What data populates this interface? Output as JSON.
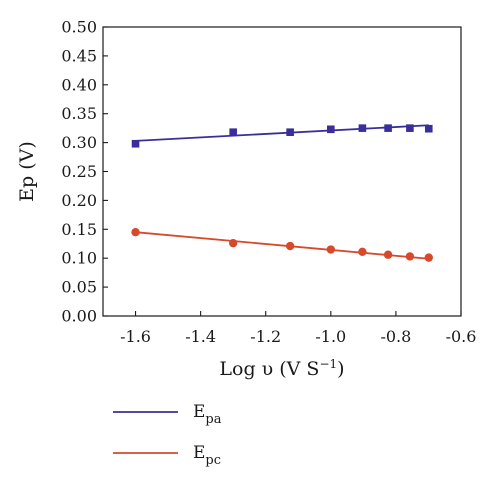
{
  "chart_data": {
    "type": "scatter",
    "xlabel": "Log υ (V S",
    "xlabel_sup": "−1",
    "xlabel_close": ")",
    "ylabel": "Ep (V)",
    "xlim": [
      -1.7,
      -0.6
    ],
    "ylim": [
      0.0,
      0.5
    ],
    "x_ticks": [
      -1.6,
      -1.4,
      -1.2,
      -1.0,
      -0.8,
      -0.6
    ],
    "x_tick_labels": [
      "-1.6",
      "-1.4",
      "-1.2",
      "-1.0",
      "-0.8",
      "-0.6"
    ],
    "y_ticks": [
      0.0,
      0.05,
      0.1,
      0.15,
      0.2,
      0.25,
      0.3,
      0.35,
      0.4,
      0.45,
      0.5
    ],
    "y_tick_labels": [
      "0.00",
      "0.05",
      "0.10",
      "0.15",
      "0.20",
      "0.25",
      "0.30",
      "0.35",
      "0.40",
      "0.45",
      "0.50"
    ],
    "grid": false,
    "legend_position": "below",
    "series": [
      {
        "name": "E",
        "name_sub": "pa",
        "color": "#3a2f9a",
        "marker": "square",
        "x": [
          -1.6,
          -1.3,
          -1.125,
          -1.0,
          -0.903,
          -0.824,
          -0.757,
          -0.699
        ],
        "y": [
          0.298,
          0.318,
          0.318,
          0.323,
          0.325,
          0.325,
          0.325,
          0.324
        ],
        "fit": {
          "x": [
            -1.6,
            -0.699
          ],
          "y": [
            0.303,
            0.33
          ]
        }
      },
      {
        "name": "E",
        "name_sub": "pc",
        "color": "#d6492b",
        "marker": "circle",
        "x": [
          -1.6,
          -1.3,
          -1.125,
          -1.0,
          -0.903,
          -0.824,
          -0.757,
          -0.699
        ],
        "y": [
          0.145,
          0.126,
          0.121,
          0.115,
          0.111,
          0.106,
          0.103,
          0.101
        ],
        "fit": {
          "x": [
            -1.6,
            -0.699
          ],
          "y": [
            0.145,
            0.099
          ]
        }
      }
    ]
  }
}
